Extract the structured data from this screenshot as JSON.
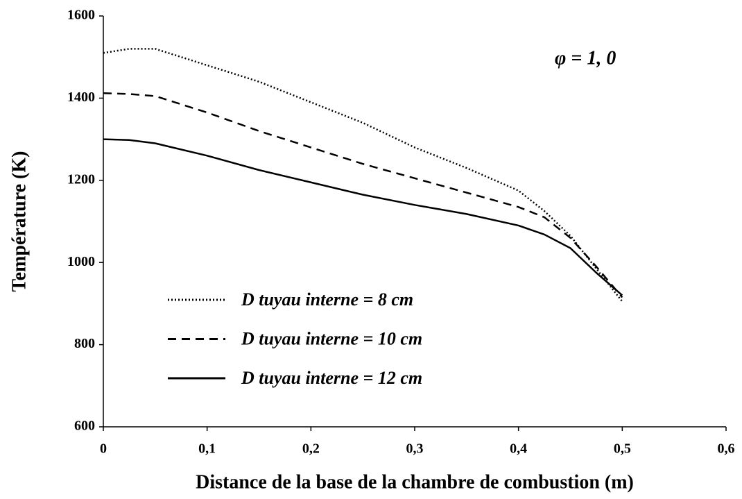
{
  "chart_data": {
    "type": "line",
    "xlabel": "Distance de la base de la chambre de combustion (m)",
    "ylabel": "Température (K)",
    "annotation": "φ = 1, 0",
    "x": [
      0,
      0.025,
      0.05,
      0.1,
      0.15,
      0.2,
      0.25,
      0.3,
      0.35,
      0.4,
      0.425,
      0.45,
      0.475,
      0.5
    ],
    "series": [
      {
        "name": "D tuyau interne = 8 cm",
        "color": "#000000",
        "line_style": "dotted",
        "values": [
          1510,
          1520,
          1520,
          1480,
          1440,
          1390,
          1340,
          1280,
          1230,
          1175,
          1125,
          1065,
          985,
          905
        ]
      },
      {
        "name": "D tuyau interne = 10 cm",
        "color": "#000000",
        "line_style": "dashed",
        "values": [
          1412,
          1410,
          1405,
          1365,
          1320,
          1280,
          1240,
          1205,
          1170,
          1135,
          1110,
          1060,
          990,
          915
        ]
      },
      {
        "name": "D tuyau interne = 12 cm",
        "color": "#000000",
        "line_style": "solid",
        "values": [
          1300,
          1298,
          1290,
          1260,
          1225,
          1195,
          1165,
          1140,
          1118,
          1090,
          1068,
          1035,
          975,
          920
        ]
      }
    ],
    "xlim": [
      0,
      0.6
    ],
    "xticks": [
      0,
      {
        "value": 0.1,
        "label": "0,1"
      },
      {
        "value": 0.2,
        "label": "0,2"
      },
      {
        "value": 0.3,
        "label": "0,3"
      },
      {
        "value": 0.4,
        "label": "0,4"
      },
      {
        "value": 0.5,
        "label": "0,5"
      },
      {
        "value": 0.6,
        "label": "0,6"
      }
    ],
    "ylim": [
      600,
      1600
    ],
    "yticks": [
      600,
      800,
      1000,
      1200,
      1400,
      1600
    ],
    "grid": false,
    "legend": "lower left"
  }
}
